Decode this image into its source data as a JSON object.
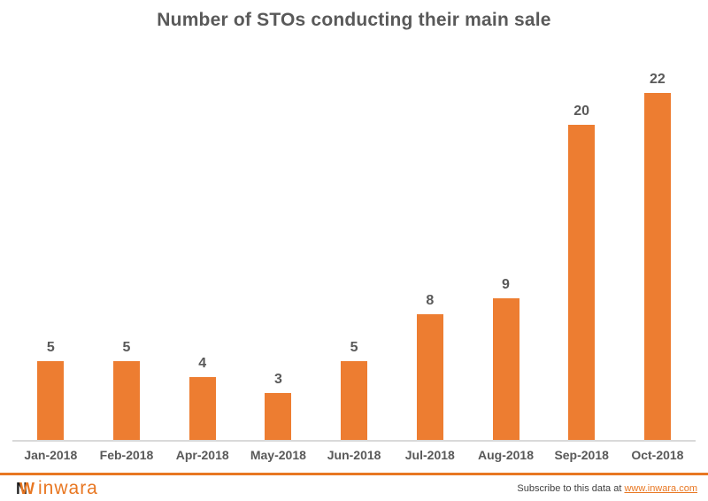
{
  "title": "Number of STOs conducting their main sale",
  "chart_data": {
    "type": "bar",
    "title": "Number of STOs conducting their main sale",
    "categories": [
      "Jan-2018",
      "Feb-2018",
      "Apr-2018",
      "May-2018",
      "Jun-2018",
      "Jul-2018",
      "Aug-2018",
      "Sep-2018",
      "Oct-2018"
    ],
    "values": [
      5,
      5,
      4,
      3,
      5,
      8,
      9,
      20,
      22
    ],
    "xlabel": "",
    "ylabel": "",
    "ylim": [
      0,
      22
    ],
    "grid": false,
    "legend": false,
    "data_labels": true,
    "bar_color": "#ED7D31",
    "label_color": "#595959",
    "axis_color": "#d9d9d9"
  },
  "footer": {
    "logo_icon": "inwara-monogram-icon",
    "logo_icon_letters": {
      "n": "N",
      "w": "W"
    },
    "logo_text": "inwara",
    "subscribe_prefix": "Subscribe to this data at ",
    "subscribe_link": "www.inwara.com"
  },
  "colors": {
    "brand_orange": "#E87722",
    "bar_orange": "#ED7D31",
    "text_gray": "#595959",
    "axis_gray": "#d9d9d9"
  }
}
